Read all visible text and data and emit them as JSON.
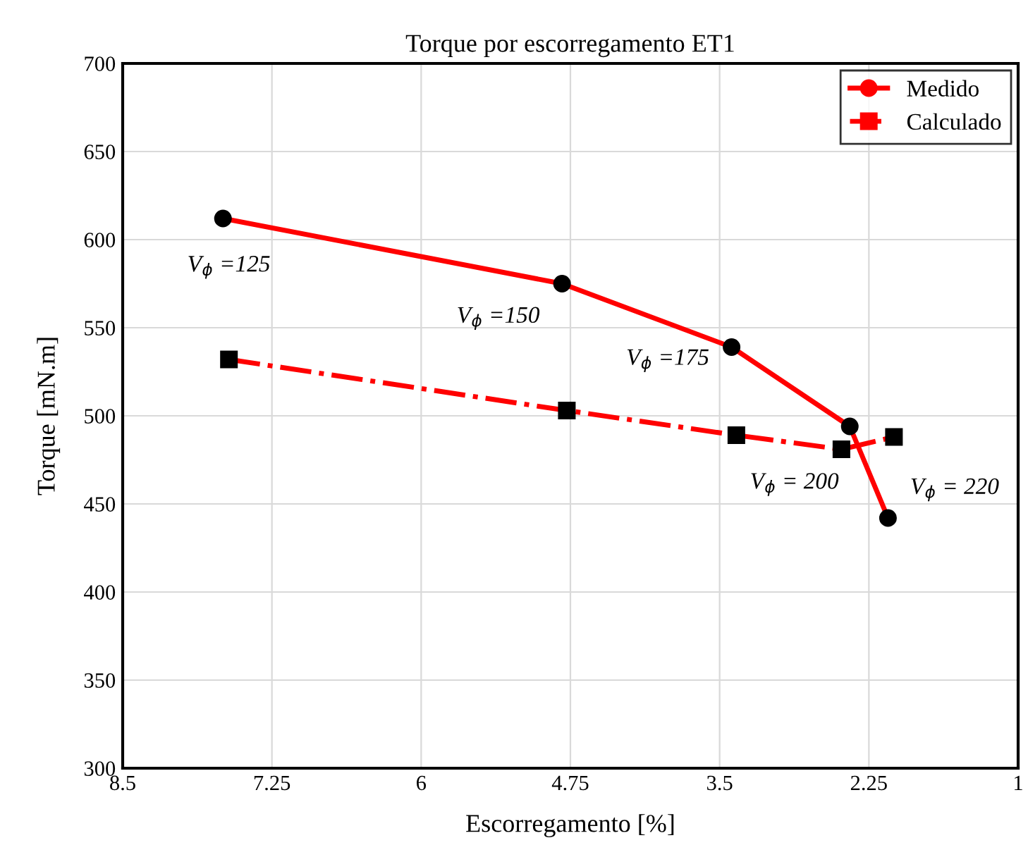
{
  "chart_data": {
    "type": "line",
    "title": "Torque por escorregamento ET1",
    "xlabel": "Escorregamento [%]",
    "ylabel": "Torque [mN.m]",
    "xlim": [
      8.5,
      1
    ],
    "xticks": [
      8.5,
      7.25,
      6,
      4.75,
      3.5,
      2.25,
      1
    ],
    "ylim": [
      300,
      700
    ],
    "yticks": [
      300,
      350,
      400,
      450,
      500,
      550,
      600,
      650,
      700
    ],
    "grid": true,
    "legend": "top right",
    "series": [
      {
        "name": "Medido",
        "color": "#ff0000",
        "marker": "circle",
        "line_style": "solid",
        "x": [
          7.66,
          4.82,
          3.4,
          2.41,
          2.09
        ],
        "values": [
          612,
          575,
          539,
          494,
          442
        ]
      },
      {
        "name": "Calculado",
        "color": "#ff0000",
        "marker": "square",
        "line_style": "dashed",
        "x": [
          7.61,
          4.78,
          3.36,
          2.48,
          2.04
        ],
        "values": [
          532,
          503,
          489,
          481,
          488
        ]
      }
    ],
    "annotations": [
      "V$_{ϕ}$ =125",
      "V$_{ϕ}$ =150",
      "V$_{ϕ}$ =175",
      "V$_{ϕ}$ = 200",
      "V$_{ϕ}$ = 220"
    ]
  }
}
